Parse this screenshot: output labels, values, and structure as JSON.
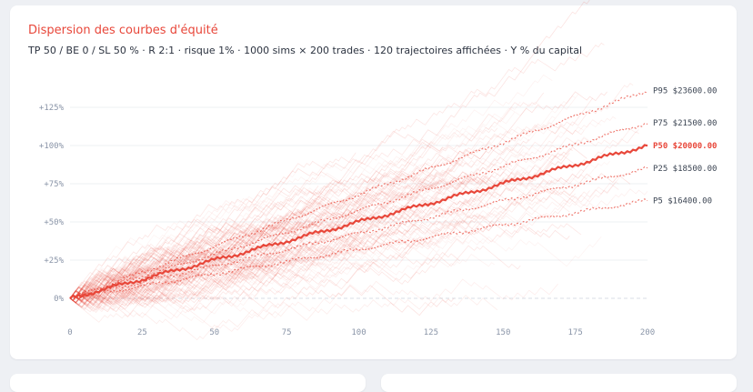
{
  "card": {
    "title": "Dispersion des courbes d'équité",
    "subtitle": "TP 50 / BE 0 / SL 50 % · R 2:1 · risque 1% · 1000 sims × 200 trades · 120 trajectoires affichées · Y % du capital"
  },
  "colors": {
    "accent": "#e8473a",
    "grid": "#eef0f3",
    "axis_text": "#8a95a8"
  },
  "chart_data": {
    "type": "line",
    "title": "Dispersion des courbes d'équité",
    "xlabel": "",
    "ylabel": "",
    "xlim": [
      0,
      200
    ],
    "ylim": [
      -10,
      150
    ],
    "x_ticks": [
      {
        "value": 0,
        "label": "0"
      },
      {
        "value": 25,
        "label": "25"
      },
      {
        "value": 50,
        "label": "50"
      },
      {
        "value": 75,
        "label": "75"
      },
      {
        "value": 100,
        "label": "100"
      },
      {
        "value": 125,
        "label": "125"
      },
      {
        "value": 150,
        "label": "150"
      },
      {
        "value": 175,
        "label": "175"
      },
      {
        "value": 200,
        "label": "200"
      }
    ],
    "y_ticks": [
      {
        "value": 0,
        "label": "0%"
      },
      {
        "value": 25,
        "label": "+25%"
      },
      {
        "value": 50,
        "label": "+50%"
      },
      {
        "value": 75,
        "label": "+75%"
      },
      {
        "value": 100,
        "label": "+100%"
      },
      {
        "value": 125,
        "label": "+125%"
      }
    ],
    "grid": true,
    "n_trajectories_shown": 120,
    "n_trades": 200,
    "percentiles": [
      {
        "name": "P95",
        "final_pct": 136,
        "label": "P95 $23600.00"
      },
      {
        "name": "P75",
        "final_pct": 115,
        "label": "P75 $21500.00"
      },
      {
        "name": "P50",
        "final_pct": 100,
        "label": "P50 $20000.00",
        "median": true
      },
      {
        "name": "P25",
        "final_pct": 85,
        "label": "P25 $18500.00"
      },
      {
        "name": "P5",
        "final_pct": 64,
        "label": "P5 $16400.00"
      }
    ]
  }
}
